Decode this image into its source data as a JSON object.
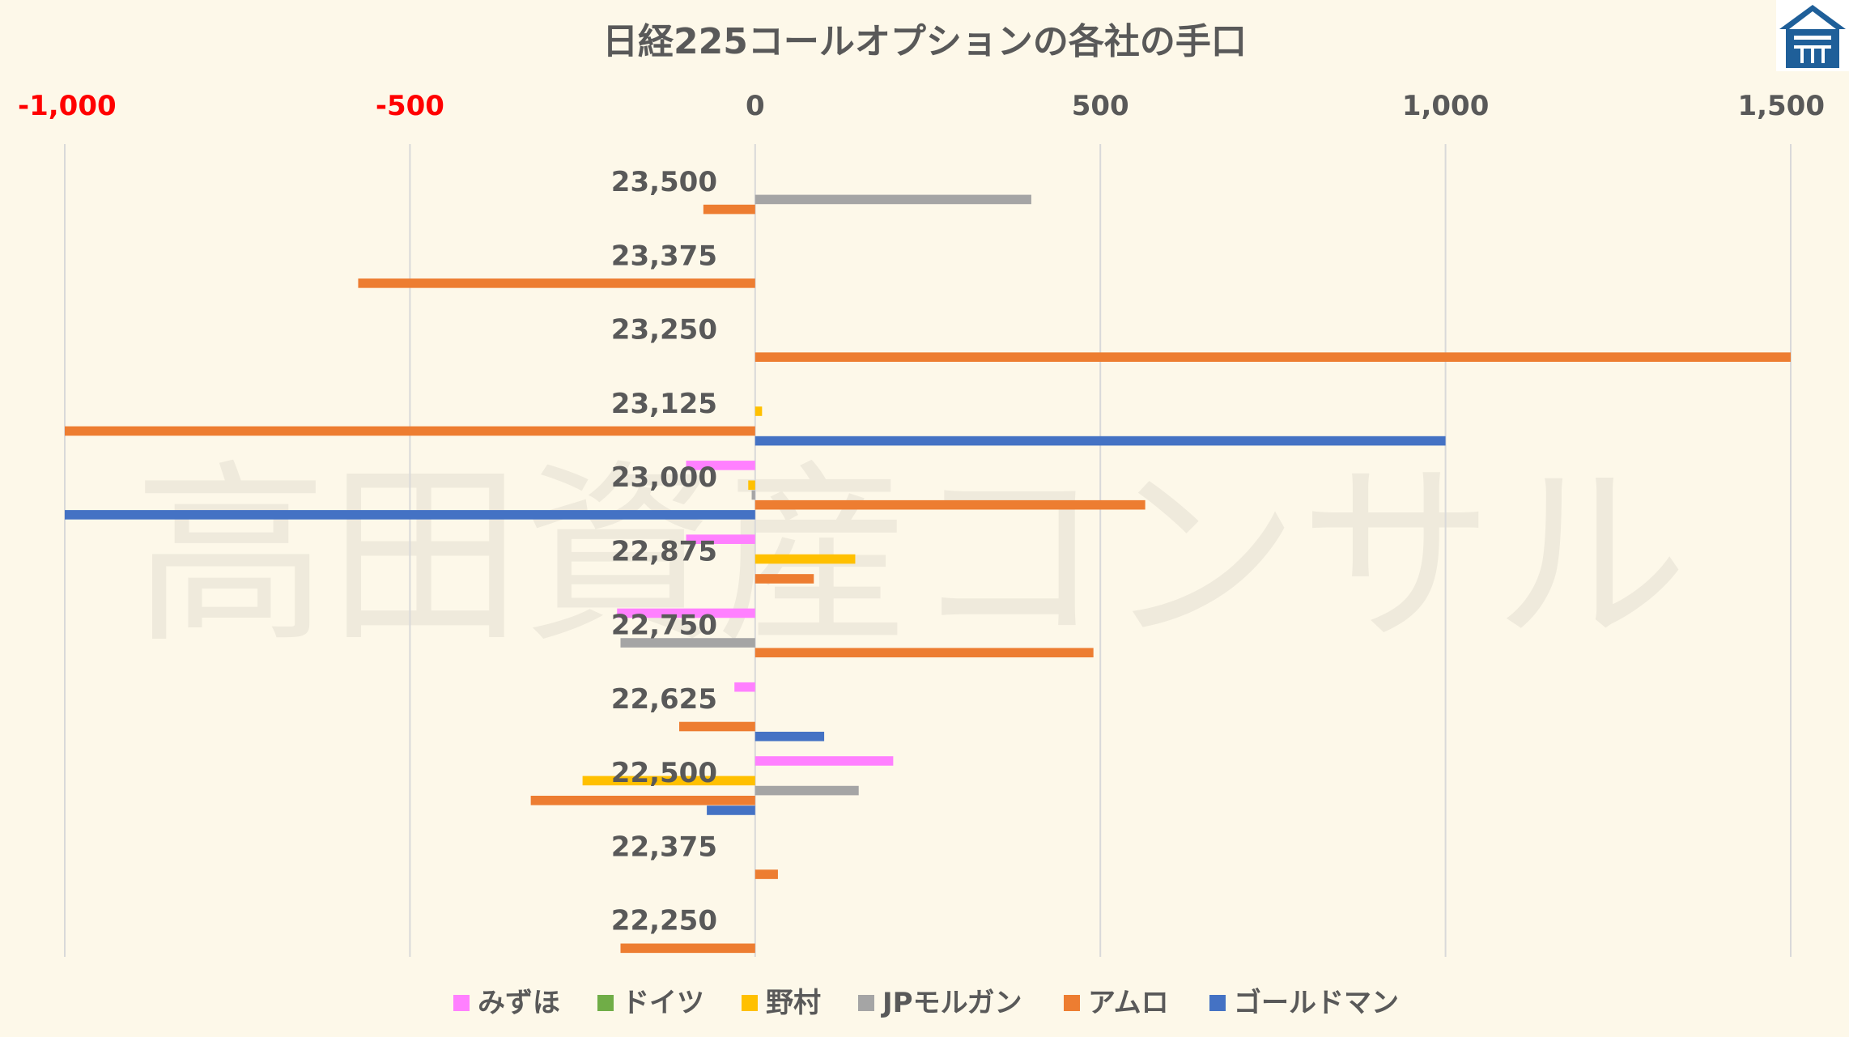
{
  "chart_data": {
    "type": "bar",
    "orientation": "horizontal",
    "title": "日経225コールオプションの各社の手口",
    "xlim": [
      -1000,
      1500
    ],
    "x_ticks": [
      -1000,
      -500,
      0,
      500,
      1000,
      1500
    ],
    "x_tick_labels": [
      "-1,000",
      "-500",
      "0",
      "500",
      "1,000",
      "1,500"
    ],
    "negative_tick_color": "#ff0000",
    "positive_tick_color": "#595959",
    "grid": "vertical",
    "legend_position": "bottom",
    "categories": [
      "23,500",
      "23,375",
      "23,250",
      "23,125",
      "23,000",
      "22,875",
      "22,750",
      "22,625",
      "22,500",
      "22,375",
      "22,250"
    ],
    "series": [
      {
        "name": "みずほ",
        "color": "#ff80ff",
        "values": [
          0,
          0,
          0,
          0,
          -100,
          -100,
          -200,
          -30,
          200,
          0,
          0
        ]
      },
      {
        "name": "ドイツ",
        "color": "#70ad47",
        "values": [
          0,
          0,
          0,
          0,
          0,
          0,
          0,
          0,
          0,
          0,
          0
        ]
      },
      {
        "name": "野村",
        "color": "#ffc000",
        "values": [
          0,
          0,
          0,
          10,
          -10,
          145,
          0,
          0,
          -250,
          0,
          0
        ]
      },
      {
        "name": "JPモルガン",
        "color": "#a5a5a5",
        "values": [
          400,
          0,
          0,
          0,
          -5,
          0,
          -195,
          0,
          150,
          0,
          0
        ]
      },
      {
        "name": "アムロ",
        "color": "#ed7d31",
        "values": [
          -75,
          -575,
          1500,
          -1000,
          565,
          85,
          490,
          -110,
          -325,
          33,
          -195
        ]
      },
      {
        "name": "ゴールドマン",
        "color": "#4472c4",
        "values": [
          0,
          0,
          0,
          1000,
          -1000,
          0,
          0,
          100,
          -70,
          0,
          0
        ]
      }
    ]
  },
  "watermark": "高田資産コンサル",
  "logo_icon": "house-logo-icon"
}
